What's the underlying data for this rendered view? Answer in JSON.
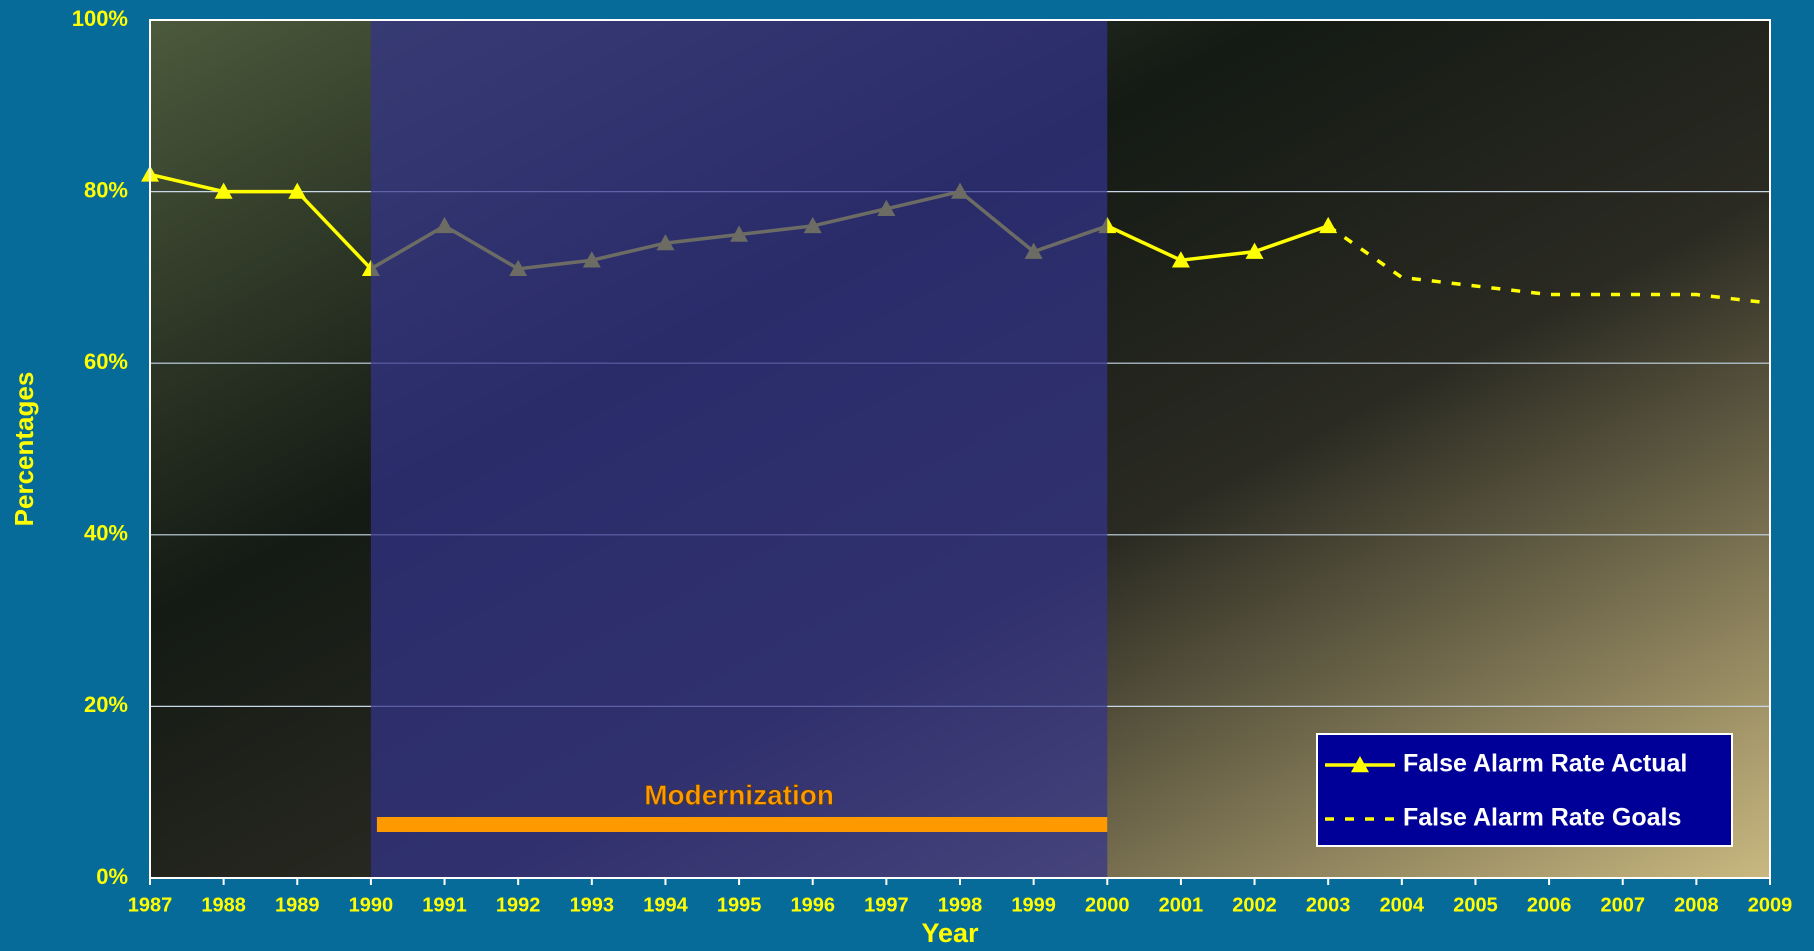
{
  "chart_data": {
    "type": "line",
    "xlabel": "Year",
    "ylabel": "Percentages",
    "x": [
      1987,
      1988,
      1989,
      1990,
      1991,
      1992,
      1993,
      1994,
      1995,
      1996,
      1997,
      1998,
      1999,
      2000,
      2001,
      2002,
      2003,
      2004,
      2005,
      2006,
      2007,
      2008,
      2009
    ],
    "series": [
      {
        "name": "False Alarm Rate Actual",
        "color": "#ffff00",
        "style": "solid",
        "marker": "triangle",
        "values": [
          82,
          80,
          80,
          71,
          76,
          71,
          72,
          74,
          75,
          76,
          78,
          80,
          73,
          76,
          72,
          73,
          76,
          null,
          null,
          null,
          null,
          null,
          null
        ]
      },
      {
        "name": "False Alarm Rate Goals",
        "color": "#ffff00",
        "style": "dotted",
        "marker": "none",
        "values": [
          null,
          null,
          null,
          null,
          null,
          null,
          null,
          null,
          null,
          null,
          null,
          null,
          null,
          null,
          null,
          null,
          76,
          70,
          69,
          68,
          68,
          68,
          67
        ]
      }
    ],
    "xlim": [
      1987,
      2009
    ],
    "xticks": [
      1987,
      1988,
      1989,
      1990,
      1991,
      1992,
      1993,
      1994,
      1995,
      1996,
      1997,
      1998,
      1999,
      2000,
      2001,
      2002,
      2003,
      2004,
      2005,
      2006,
      2007,
      2008,
      2009
    ],
    "ylim": [
      0,
      100
    ],
    "yticks": [
      {
        "value": 0,
        "label": "0%"
      },
      {
        "value": 20,
        "label": "20%"
      },
      {
        "value": 40,
        "label": "40%"
      },
      {
        "value": 60,
        "label": "60%"
      },
      {
        "value": 80,
        "label": "80%"
      },
      {
        "value": 100,
        "label": "100%"
      }
    ],
    "grid": true,
    "legend": "lower right",
    "annotation": {
      "text": "Modernization",
      "range": [
        1990,
        2000
      ],
      "color": "#ff9900"
    }
  }
}
